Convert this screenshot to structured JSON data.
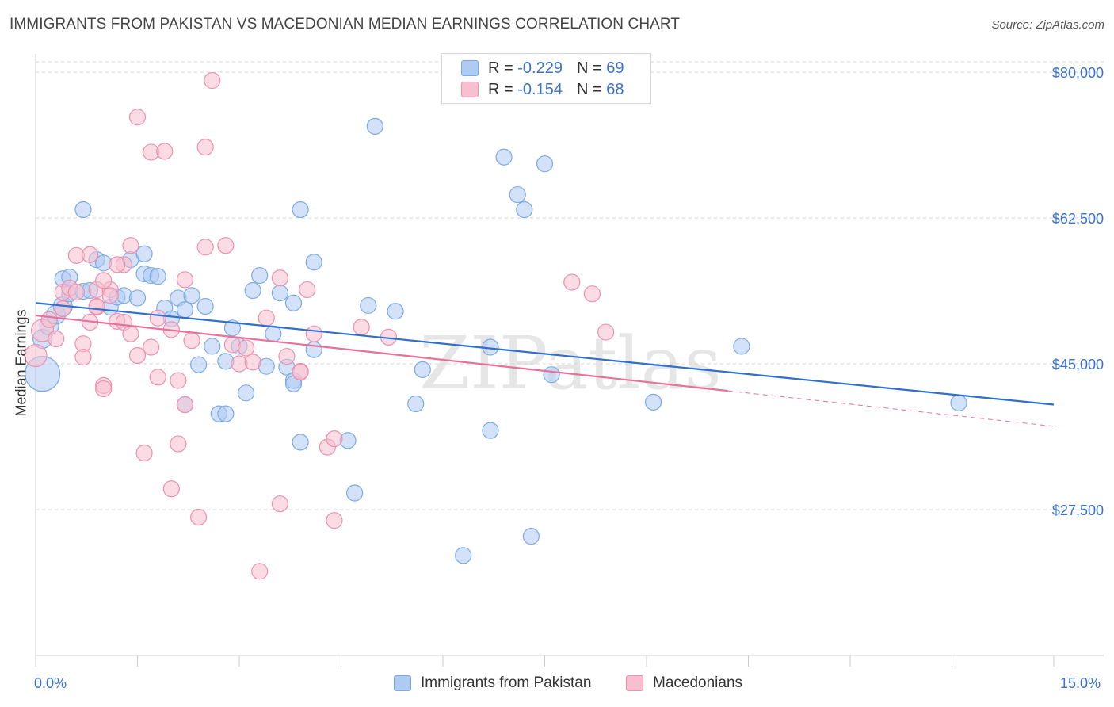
{
  "title": "IMMIGRANTS FROM PAKISTAN VS MACEDONIAN MEDIAN EARNINGS CORRELATION CHART",
  "source": "Source: ZipAtlas.com",
  "watermark": "ZIPatlas",
  "legend": {
    "rows": [
      {
        "r_label": "R =",
        "r_value": "-0.229",
        "n_label": "N =",
        "n_value": "69",
        "color": "#aecbf2"
      },
      {
        "r_label": "R =",
        "r_value": "-0.154",
        "n_label": "N =",
        "n_value": "68",
        "color": "#f7bfd0"
      }
    ]
  },
  "bottom_legend": [
    {
      "label": "Immigrants from Pakistan",
      "color": "#aecbf2"
    },
    {
      "label": "Macedonians",
      "color": "#f7bfd0"
    }
  ],
  "chart_data": {
    "type": "scatter",
    "title": "IMMIGRANTS FROM PAKISTAN VS MACEDONIAN MEDIAN EARNINGS CORRELATION CHART",
    "xlabel": "",
    "ylabel": "Median Earnings",
    "xlim": [
      0,
      15
    ],
    "ylim": [
      10000,
      82000
    ],
    "x_tick_labels": [
      "0.0%",
      "15.0%"
    ],
    "y_ticks": [
      27500,
      45000,
      62500,
      80000
    ],
    "y_tick_labels": [
      "$27,500",
      "$45,000",
      "$62,500",
      "$80,000"
    ],
    "grid": true,
    "series": [
      {
        "name": "Immigrants from Pakistan",
        "color": "#7aaae6",
        "fill": "#aecbf2",
        "trend": {
          "x": [
            0,
            15
          ],
          "y": [
            52300,
            40100
          ],
          "dash_from": null
        },
        "points": [
          [
            0.1,
            43800,
            22
          ],
          [
            0.1,
            48000,
            12
          ],
          [
            0.2,
            49600,
            12
          ],
          [
            0.3,
            50900,
            12
          ],
          [
            0.4,
            51900,
            12
          ],
          [
            0.4,
            55200,
            10
          ],
          [
            0.5,
            53400,
            10
          ],
          [
            0.5,
            55400,
            10
          ],
          [
            0.7,
            53700,
            10
          ],
          [
            0.8,
            53800,
            10
          ],
          [
            0.7,
            63500,
            10
          ],
          [
            0.9,
            57500,
            10
          ],
          [
            1.0,
            57100,
            10
          ],
          [
            1.1,
            51800,
            10
          ],
          [
            1.2,
            53000,
            10
          ],
          [
            1.3,
            53200,
            10
          ],
          [
            1.4,
            57500,
            10
          ],
          [
            1.5,
            52900,
            10
          ],
          [
            1.6,
            55800,
            10
          ],
          [
            1.6,
            58200,
            10
          ],
          [
            1.7,
            55600,
            10
          ],
          [
            1.8,
            55500,
            10
          ],
          [
            1.9,
            51700,
            10
          ],
          [
            2.0,
            50400,
            10
          ],
          [
            2.1,
            52900,
            10
          ],
          [
            2.2,
            51500,
            10
          ],
          [
            2.3,
            53200,
            10
          ],
          [
            2.2,
            40100,
            10
          ],
          [
            2.4,
            44900,
            10
          ],
          [
            2.5,
            51900,
            10
          ],
          [
            2.6,
            47100,
            10
          ],
          [
            2.7,
            39000,
            10
          ],
          [
            2.8,
            45300,
            10
          ],
          [
            2.9,
            49300,
            10
          ],
          [
            3.0,
            47100,
            10
          ],
          [
            3.1,
            41500,
            10
          ],
          [
            3.2,
            53800,
            10
          ],
          [
            3.3,
            55600,
            10
          ],
          [
            3.4,
            44700,
            10
          ],
          [
            3.5,
            48600,
            10
          ],
          [
            3.6,
            53500,
            10
          ],
          [
            3.7,
            44600,
            10
          ],
          [
            3.8,
            43000,
            10
          ],
          [
            3.8,
            42600,
            10
          ],
          [
            3.8,
            52300,
            10
          ],
          [
            3.9,
            63500,
            10
          ],
          [
            3.9,
            35600,
            10
          ],
          [
            4.1,
            57200,
            10
          ],
          [
            4.1,
            46700,
            10
          ],
          [
            4.6,
            35800,
            10
          ],
          [
            4.7,
            29500,
            10
          ],
          [
            4.9,
            52000,
            10
          ],
          [
            5.0,
            73500,
            10
          ],
          [
            5.3,
            51300,
            10
          ],
          [
            5.6,
            40200,
            10
          ],
          [
            5.7,
            44300,
            10
          ],
          [
            6.3,
            22000,
            10
          ],
          [
            6.7,
            47000,
            10
          ],
          [
            6.7,
            37000,
            10
          ],
          [
            6.9,
            69800,
            10
          ],
          [
            7.1,
            65300,
            10
          ],
          [
            7.2,
            63500,
            10
          ],
          [
            7.3,
            24300,
            10
          ],
          [
            7.5,
            69000,
            10
          ],
          [
            7.6,
            43700,
            10
          ],
          [
            9.1,
            40400,
            10
          ],
          [
            10.4,
            47100,
            10
          ],
          [
            13.6,
            40300,
            10
          ],
          [
            2.8,
            39000,
            10
          ]
        ]
      },
      {
        "name": "Macedonians",
        "color": "#ee8fae",
        "fill": "#f7bfd0",
        "trend": {
          "x": [
            0,
            15
          ],
          "y": [
            50800,
            37500
          ],
          "dash_from": 10.2
        },
        "points": [
          [
            0.0,
            46000,
            14
          ],
          [
            0.1,
            49000,
            14
          ],
          [
            0.2,
            50300,
            10
          ],
          [
            0.4,
            51600,
            10
          ],
          [
            0.4,
            53600,
            10
          ],
          [
            0.5,
            54100,
            10
          ],
          [
            0.6,
            58000,
            10
          ],
          [
            0.6,
            53600,
            10
          ],
          [
            0.7,
            47400,
            10
          ],
          [
            0.7,
            45800,
            10
          ],
          [
            0.8,
            50000,
            10
          ],
          [
            0.8,
            58100,
            10
          ],
          [
            0.9,
            51800,
            10
          ],
          [
            0.9,
            53900,
            10
          ],
          [
            1.0,
            42400,
            10
          ],
          [
            1.0,
            42000,
            10
          ],
          [
            1.1,
            53900,
            10
          ],
          [
            1.0,
            55000,
            10
          ],
          [
            1.2,
            50100,
            10
          ],
          [
            1.3,
            50000,
            10
          ],
          [
            1.3,
            56900,
            10
          ],
          [
            1.4,
            59200,
            10
          ],
          [
            1.4,
            48600,
            10
          ],
          [
            1.5,
            46000,
            10
          ],
          [
            1.5,
            74600,
            10
          ],
          [
            1.6,
            34300,
            10
          ],
          [
            1.7,
            70400,
            10
          ],
          [
            1.7,
            47000,
            10
          ],
          [
            1.8,
            43400,
            10
          ],
          [
            1.8,
            50500,
            10
          ],
          [
            1.9,
            70500,
            10
          ],
          [
            2.0,
            49100,
            10
          ],
          [
            2.0,
            30000,
            10
          ],
          [
            2.1,
            43000,
            10
          ],
          [
            2.1,
            35400,
            10
          ],
          [
            2.2,
            55100,
            10
          ],
          [
            2.3,
            47800,
            10
          ],
          [
            2.4,
            26600,
            10
          ],
          [
            2.5,
            71000,
            10
          ],
          [
            2.5,
            59000,
            10
          ],
          [
            2.2,
            40100,
            10
          ],
          [
            2.6,
            79000,
            10
          ],
          [
            2.8,
            59200,
            10
          ],
          [
            2.9,
            47300,
            10
          ],
          [
            3.0,
            45000,
            10
          ],
          [
            3.1,
            46900,
            10
          ],
          [
            3.3,
            20100,
            10
          ],
          [
            3.4,
            50500,
            10
          ],
          [
            3.6,
            55300,
            10
          ],
          [
            3.6,
            28200,
            10
          ],
          [
            3.7,
            45900,
            10
          ],
          [
            3.9,
            44100,
            10
          ],
          [
            4.0,
            53900,
            10
          ],
          [
            4.1,
            48600,
            10
          ],
          [
            4.3,
            35000,
            10
          ],
          [
            4.4,
            36000,
            10
          ],
          [
            4.4,
            26200,
            10
          ],
          [
            4.8,
            49400,
            10
          ],
          [
            5.2,
            48200,
            10
          ],
          [
            7.9,
            54800,
            10
          ],
          [
            8.2,
            53400,
            10
          ],
          [
            8.4,
            48800,
            10
          ],
          [
            1.2,
            56900,
            10
          ],
          [
            0.3,
            48000,
            10
          ],
          [
            0.9,
            51900,
            10
          ],
          [
            3.2,
            45200,
            10
          ],
          [
            1.1,
            53200,
            10
          ],
          [
            3.9,
            44000,
            10
          ]
        ]
      }
    ]
  }
}
